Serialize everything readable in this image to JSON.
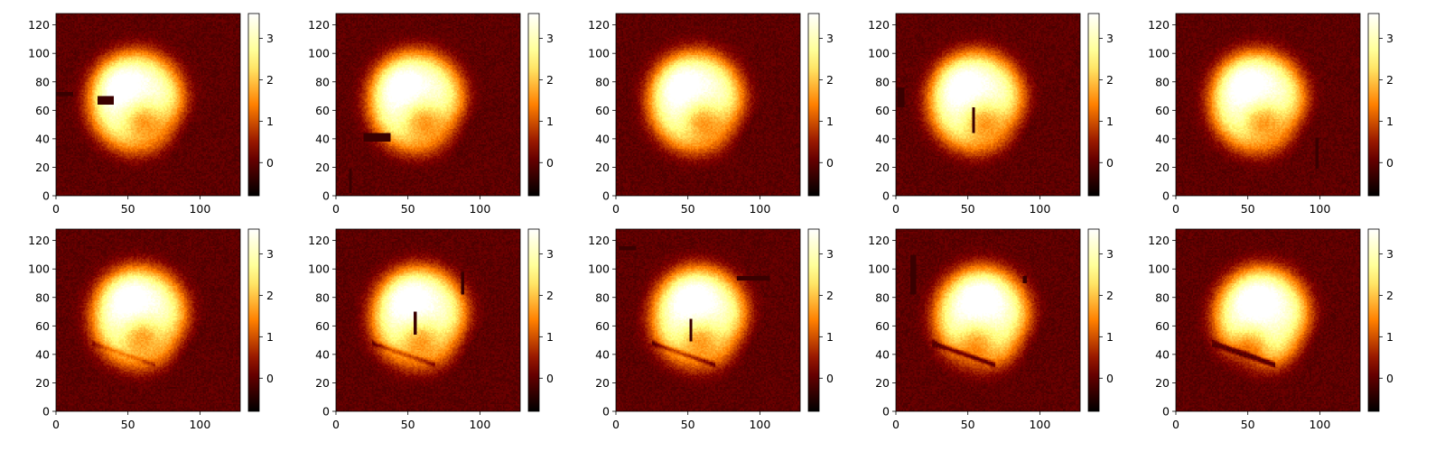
{
  "figure": {
    "colormap": "afmhot",
    "layout": {
      "rows": 2,
      "cols": 5
    },
    "background": "#ffffff"
  },
  "chart_data": [
    {
      "type": "heatmap",
      "xlim": [
        0,
        128
      ],
      "ylim": [
        0,
        128
      ],
      "xticks": [
        0,
        50,
        100
      ],
      "yticks": [
        0,
        20,
        40,
        60,
        80,
        100,
        120
      ],
      "clim": [
        -0.8,
        3.6
      ],
      "colorbar_ticks": [
        0,
        1,
        2,
        3
      ],
      "blob": {
        "cx": 56,
        "cy": 66,
        "rx": 34,
        "ry": 36,
        "peak_x": 44,
        "peak_y": 78,
        "hole_x": 60,
        "hole_y": 52,
        "crease": 0.0
      },
      "masks": [
        {
          "x0": 0,
          "x1": 12,
          "y0": 70,
          "y1": 73
        },
        {
          "x0": 29,
          "x1": 40,
          "y0": 64,
          "y1": 70
        }
      ]
    },
    {
      "type": "heatmap",
      "xlim": [
        0,
        128
      ],
      "ylim": [
        0,
        128
      ],
      "xticks": [
        0,
        50,
        100
      ],
      "yticks": [
        0,
        20,
        40,
        60,
        80,
        100,
        120
      ],
      "clim": [
        -0.8,
        3.6
      ],
      "colorbar_ticks": [
        0,
        1,
        2,
        3
      ],
      "blob": {
        "cx": 56,
        "cy": 66,
        "rx": 34,
        "ry": 36,
        "peak_x": 44,
        "peak_y": 78,
        "hole_x": 60,
        "hole_y": 52,
        "crease": 0.0
      },
      "masks": [
        {
          "x0": 19,
          "x1": 38,
          "y0": 38,
          "y1": 44
        },
        {
          "x0": 9,
          "x1": 11,
          "y0": 2,
          "y1": 19
        }
      ]
    },
    {
      "type": "heatmap",
      "xlim": [
        0,
        128
      ],
      "ylim": [
        0,
        128
      ],
      "xticks": [
        0,
        50,
        100
      ],
      "yticks": [
        0,
        20,
        40,
        60,
        80,
        100,
        120
      ],
      "clim": [
        -0.8,
        3.6
      ],
      "colorbar_ticks": [
        0,
        1,
        2,
        3
      ],
      "blob": {
        "cx": 56,
        "cy": 66,
        "rx": 34,
        "ry": 36,
        "peak_x": 44,
        "peak_y": 78,
        "hole_x": 60,
        "hole_y": 52,
        "crease": 0.0
      },
      "masks": []
    },
    {
      "type": "heatmap",
      "xlim": [
        0,
        128
      ],
      "ylim": [
        0,
        128
      ],
      "xticks": [
        0,
        50,
        100
      ],
      "yticks": [
        0,
        20,
        40,
        60,
        80,
        100,
        120
      ],
      "clim": [
        -0.8,
        3.6
      ],
      "colorbar_ticks": [
        0,
        1,
        2,
        3
      ],
      "blob": {
        "cx": 56,
        "cy": 66,
        "rx": 34,
        "ry": 36,
        "peak_x": 45,
        "peak_y": 78,
        "hole_x": 60,
        "hole_y": 52,
        "crease": 0.0
      },
      "masks": [
        {
          "x0": 1,
          "x1": 6,
          "y0": 62,
          "y1": 76
        },
        {
          "x0": 53,
          "x1": 55,
          "y0": 44,
          "y1": 62
        }
      ]
    },
    {
      "type": "heatmap",
      "xlim": [
        0,
        128
      ],
      "ylim": [
        0,
        128
      ],
      "xticks": [
        0,
        50,
        100
      ],
      "yticks": [
        0,
        20,
        40,
        60,
        80,
        100,
        120
      ],
      "clim": [
        -0.8,
        3.6
      ],
      "colorbar_ticks": [
        0,
        1,
        2,
        3
      ],
      "blob": {
        "cx": 57,
        "cy": 66,
        "rx": 34,
        "ry": 36,
        "peak_x": 48,
        "peak_y": 79,
        "hole_x": 60,
        "hole_y": 52,
        "crease": 0.0
      },
      "masks": [
        {
          "x0": 97,
          "x1": 99,
          "y0": 19,
          "y1": 41
        }
      ]
    },
    {
      "type": "heatmap",
      "xlim": [
        0,
        128
      ],
      "ylim": [
        0,
        128
      ],
      "xticks": [
        0,
        50,
        100
      ],
      "yticks": [
        0,
        20,
        40,
        60,
        80,
        100,
        120
      ],
      "clim": [
        -0.8,
        3.6
      ],
      "colorbar_ticks": [
        0,
        1,
        2,
        3
      ],
      "blob": {
        "cx": 58,
        "cy": 66,
        "rx": 34,
        "ry": 36,
        "peak_x": 50,
        "peak_y": 80,
        "hole_x": 59,
        "hole_y": 52,
        "crease": 0.3
      },
      "masks": []
    },
    {
      "type": "heatmap",
      "xlim": [
        0,
        128
      ],
      "ylim": [
        0,
        128
      ],
      "xticks": [
        0,
        50,
        100
      ],
      "yticks": [
        0,
        20,
        40,
        60,
        80,
        100,
        120
      ],
      "clim": [
        -0.8,
        3.6
      ],
      "colorbar_ticks": [
        0,
        1,
        2,
        3
      ],
      "blob": {
        "cx": 58,
        "cy": 66,
        "rx": 34,
        "ry": 36,
        "peak_x": 50,
        "peak_y": 80,
        "hole_x": 58,
        "hole_y": 50,
        "crease": 0.45
      },
      "masks": [
        {
          "x0": 54,
          "x1": 56,
          "y0": 54,
          "y1": 70
        },
        {
          "x0": 87,
          "x1": 89,
          "y0": 82,
          "y1": 98
        }
      ]
    },
    {
      "type": "heatmap",
      "xlim": [
        0,
        128
      ],
      "ylim": [
        0,
        128
      ],
      "xticks": [
        0,
        50,
        100
      ],
      "yticks": [
        0,
        20,
        40,
        60,
        80,
        100,
        120
      ],
      "clim": [
        -0.8,
        3.6
      ],
      "colorbar_ticks": [
        0,
        1,
        2,
        3
      ],
      "blob": {
        "cx": 58,
        "cy": 66,
        "rx": 34,
        "ry": 36,
        "peak_x": 52,
        "peak_y": 80,
        "hole_x": 58,
        "hole_y": 50,
        "crease": 0.55
      },
      "masks": [
        {
          "x0": 2,
          "x1": 14,
          "y0": 113,
          "y1": 116
        },
        {
          "x0": 84,
          "x1": 107,
          "y0": 92,
          "y1": 95
        },
        {
          "x0": 51,
          "x1": 53,
          "y0": 49,
          "y1": 65
        }
      ]
    },
    {
      "type": "heatmap",
      "xlim": [
        0,
        128
      ],
      "ylim": [
        0,
        128
      ],
      "xticks": [
        0,
        50,
        100
      ],
      "yticks": [
        0,
        20,
        40,
        60,
        80,
        100,
        120
      ],
      "clim": [
        -0.8,
        3.6
      ],
      "colorbar_ticks": [
        0,
        1,
        2,
        3
      ],
      "blob": {
        "cx": 60,
        "cy": 66,
        "rx": 34,
        "ry": 36,
        "peak_x": 58,
        "peak_y": 80,
        "hole_x": 56,
        "hole_y": 48,
        "crease": 0.75
      },
      "masks": [
        {
          "x0": 10,
          "x1": 14,
          "y0": 82,
          "y1": 110
        },
        {
          "x0": 88,
          "x1": 91,
          "y0": 90,
          "y1": 95
        }
      ]
    },
    {
      "type": "heatmap",
      "xlim": [
        0,
        128
      ],
      "ylim": [
        0,
        128
      ],
      "xticks": [
        0,
        50,
        100
      ],
      "yticks": [
        0,
        20,
        40,
        60,
        80,
        100,
        120
      ],
      "clim": [
        -0.8,
        3.6
      ],
      "colorbar_ticks": [
        0,
        1,
        2,
        3
      ],
      "blob": {
        "cx": 60,
        "cy": 66,
        "rx": 34,
        "ry": 36,
        "peak_x": 56,
        "peak_y": 78,
        "hole_x": 52,
        "hole_y": 46,
        "crease": 1.0
      },
      "masks": []
    }
  ]
}
